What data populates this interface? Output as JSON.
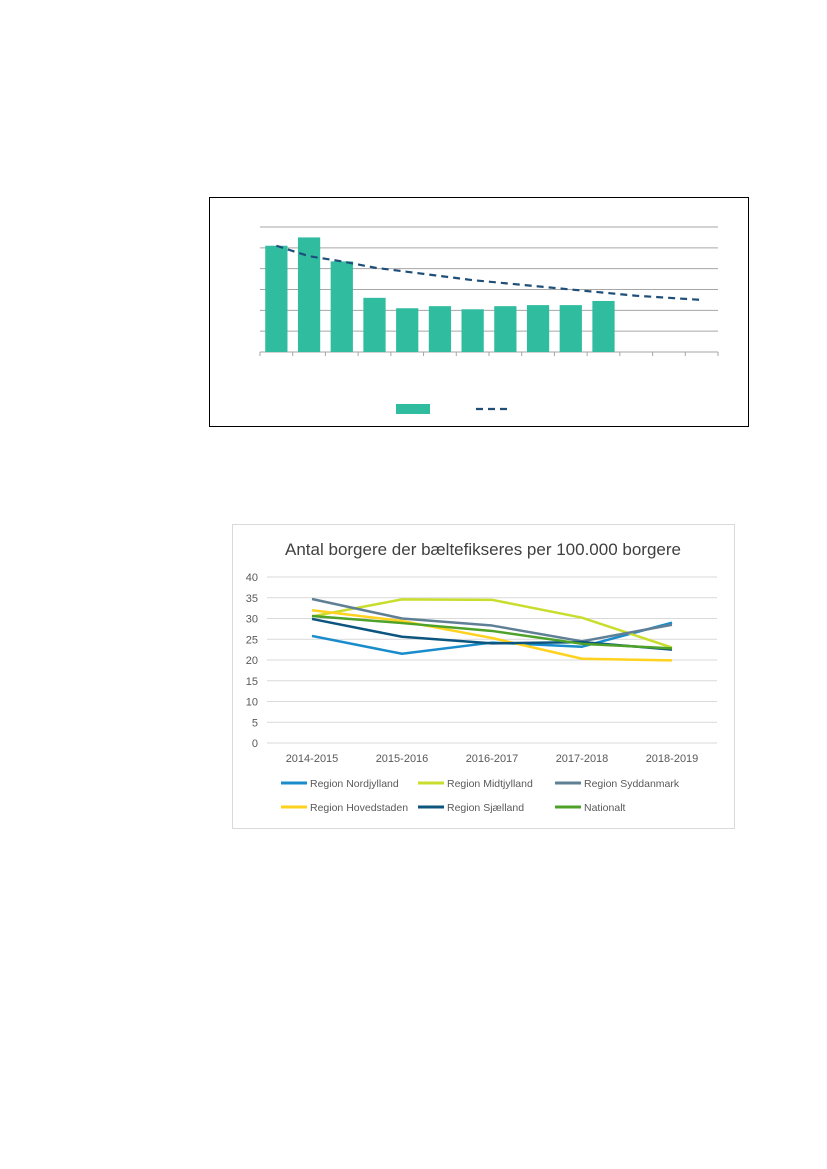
{
  "chart_data": [
    {
      "type": "bar",
      "title": "",
      "xlabel": "",
      "ylabel": "",
      "ylim": [
        0,
        6
      ],
      "y_ticks": [
        0,
        1,
        2,
        3,
        4,
        5,
        6
      ],
      "grid": true,
      "categories": [
        "",
        "",
        "",
        "",
        "",
        "",
        "",
        "",
        "",
        "",
        "",
        "",
        "",
        ""
      ],
      "series": [
        {
          "type": "bar",
          "color": "#2fbc9f",
          "values": [
            5.1,
            5.5,
            4.35,
            2.6,
            2.1,
            2.2,
            2.05,
            2.2,
            2.25,
            2.25,
            2.45,
            null,
            null,
            null
          ]
        },
        {
          "type": "line",
          "style": "dashed",
          "color": "#1f4e79",
          "values": [
            5.1,
            4.6,
            4.35,
            4.05,
            3.85,
            3.65,
            3.45,
            3.3,
            3.15,
            3.0,
            2.85,
            2.7,
            2.6,
            2.5
          ]
        }
      ],
      "legend_position": "bottom"
    },
    {
      "type": "line",
      "title": "Antal borgere der bæltefikseres per 100.000 borgere",
      "xlabel": "",
      "ylabel": "",
      "ylim": [
        0,
        40
      ],
      "y_ticks": [
        "0",
        "5",
        "10",
        "15",
        "20",
        "25",
        "30",
        "35",
        "40"
      ],
      "grid": true,
      "categories": [
        "2014-2015",
        "2015-2016",
        "2016-2017",
        "2017-2018",
        "2018-2019"
      ],
      "series": [
        {
          "name": "Region Nordjylland",
          "color": "#1a8ccb",
          "values": [
            25.8,
            21.5,
            24.2,
            23.2,
            29.0
          ]
        },
        {
          "name": "Region Midtjylland",
          "color": "#c8dd2c",
          "values": [
            30.5,
            34.6,
            34.5,
            30.2,
            23.0
          ]
        },
        {
          "name": "Region Syddanmark",
          "color": "#5f7f95",
          "values": [
            34.7,
            30.0,
            28.3,
            24.5,
            28.5
          ]
        },
        {
          "name": "Region Hovedstaden",
          "color": "#ffd21f",
          "values": [
            32.0,
            29.4,
            25.3,
            20.3,
            19.9
          ]
        },
        {
          "name": "Region Sjælland",
          "color": "#0c557f",
          "values": [
            29.9,
            25.6,
            24.0,
            24.3,
            22.5
          ]
        },
        {
          "name": "Nationalt",
          "color": "#4ea229",
          "values": [
            30.6,
            28.9,
            27.0,
            23.9,
            22.8
          ]
        }
      ],
      "legend_position": "bottom"
    }
  ]
}
